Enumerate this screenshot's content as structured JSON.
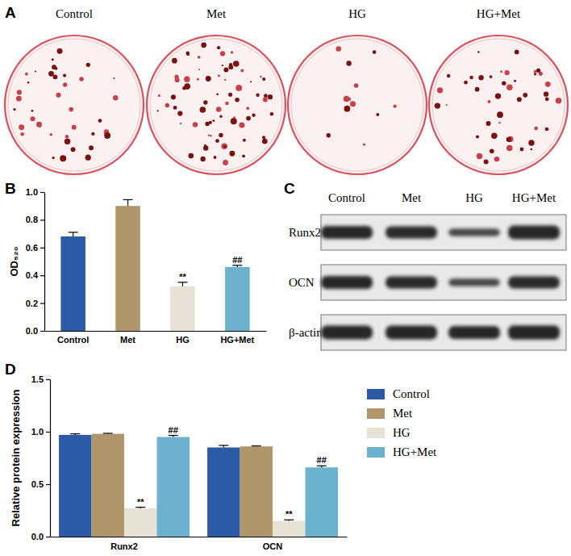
{
  "panel_labels": [
    "A",
    "B",
    "C",
    "D"
  ],
  "plates": {
    "labels": [
      "Control",
      "Met",
      "HG",
      "HG+Met"
    ]
  },
  "blot": {
    "lanes": [
      "Control",
      "Met",
      "HG",
      "HG+Met"
    ],
    "rows": [
      "Runx2",
      "OCN",
      "β-actin"
    ]
  },
  "chart_data": [
    {
      "type": "bar",
      "y_label": "OD₅₂₀",
      "categories": [
        "Control",
        "Met",
        "HG",
        "HG+Met"
      ],
      "values": [
        0.68,
        0.9,
        0.32,
        0.46
      ],
      "errors": [
        0.03,
        0.045,
        0.03,
        0.012
      ],
      "colors": [
        "#2b5aa6",
        "#b0976b",
        "#e6e2d6",
        "#6cb2cf"
      ],
      "ylim": [
        0,
        1.0
      ],
      "yticks": [
        {
          "value": 0,
          "label": "0.0"
        },
        {
          "value": 0.2,
          "label": "0.2"
        },
        {
          "value": 0.4,
          "label": "0.4"
        },
        {
          "value": 0.6,
          "label": "0.6"
        },
        {
          "value": 0.8,
          "label": "0.8"
        },
        {
          "value": 1.0,
          "label": "1.0"
        }
      ],
      "annotations": [
        {
          "category": "HG",
          "text": "**"
        },
        {
          "category": "HG+Met",
          "text": "##"
        }
      ]
    },
    {
      "type": "bar",
      "y_label": "Relative protein expression",
      "categories": [
        "Runx2",
        "OCN"
      ],
      "series": [
        {
          "name": "Control",
          "color": "#2b5aa6",
          "values": [
            0.97,
            0.85
          ],
          "errors": [
            0.01,
            0.02
          ]
        },
        {
          "name": "Met",
          "color": "#b0976b",
          "values": [
            0.98,
            0.86
          ],
          "errors": [
            0.005,
            0.005
          ]
        },
        {
          "name": "HG",
          "color": "#e6e2d6",
          "values": [
            0.27,
            0.15
          ],
          "errors": [
            0.01,
            0.01
          ]
        },
        {
          "name": "HG+Met",
          "color": "#6cb2cf",
          "values": [
            0.95,
            0.66
          ],
          "errors": [
            0.015,
            0.015
          ]
        }
      ],
      "ylim": [
        0,
        1.5
      ],
      "yticks": [
        {
          "value": 0,
          "label": "0.0"
        },
        {
          "value": 0.5,
          "label": "0.5"
        },
        {
          "value": 1.0,
          "label": "1.0"
        },
        {
          "value": 1.5,
          "label": "1.5"
        }
      ],
      "legend": "right",
      "annotations": [
        {
          "category": "Runx2",
          "series": "HG",
          "text": "**"
        },
        {
          "category": "Runx2",
          "series": "HG+Met",
          "text": "##"
        },
        {
          "category": "OCN",
          "series": "HG",
          "text": "**"
        },
        {
          "category": "OCN",
          "series": "HG+Met",
          "text": "##"
        }
      ]
    }
  ]
}
